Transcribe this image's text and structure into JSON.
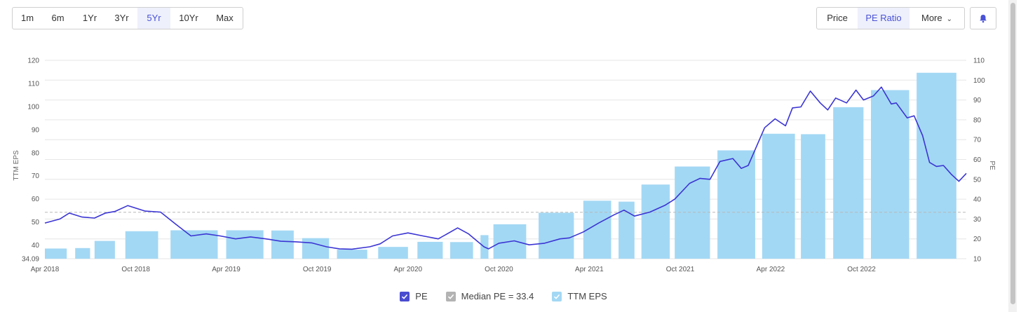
{
  "range_buttons": [
    "1m",
    "6m",
    "1Yr",
    "3Yr",
    "5Yr",
    "10Yr",
    "Max"
  ],
  "active_range": "5Yr",
  "mode_buttons": {
    "price": "Price",
    "pe_ratio": "PE Ratio",
    "more": "More"
  },
  "active_mode": "PE Ratio",
  "colors": {
    "accent": "#4a52d6",
    "pe_line": "#3b35d3",
    "eps_bar": "#a3d8f4",
    "median": "#b8b8b8",
    "grid": "#e6e6e6"
  },
  "legend": {
    "pe": "PE",
    "median": "Median PE = 33.4",
    "eps": "TTM EPS"
  },
  "chart_data": {
    "type": "bar+line",
    "left_axis": {
      "label": "TTM EPS",
      "ticks": [
        "34.09",
        "40",
        "50",
        "60",
        "70",
        "80",
        "90",
        "100",
        "110",
        "120"
      ],
      "range": [
        34.09,
        120
      ]
    },
    "right_axis": {
      "label": "PE",
      "ticks": [
        "10",
        "20",
        "30",
        "40",
        "50",
        "60",
        "70",
        "80",
        "90",
        "100",
        "110"
      ],
      "range": [
        10,
        110
      ]
    },
    "x_ticks": [
      "Apr 2018",
      "Oct 2018",
      "Apr 2019",
      "Oct 2019",
      "Apr 2020",
      "Oct 2020",
      "Apr 2021",
      "Oct 2021",
      "Apr 2022",
      "Oct 2022"
    ],
    "x_range": [
      "2018-04-01",
      "2023-04-30"
    ],
    "median_pe": 33.4,
    "eps_bars": [
      {
        "start": "2018-04-01",
        "end": "2018-05-15",
        "eps": 38.5
      },
      {
        "start": "2018-06-01",
        "end": "2018-07-01",
        "eps": 38.7
      },
      {
        "start": "2018-07-10",
        "end": "2018-08-20",
        "eps": 41.8
      },
      {
        "start": "2018-09-10",
        "end": "2018-11-15",
        "eps": 46.0
      },
      {
        "start": "2018-12-10",
        "end": "2019-03-15",
        "eps": 46.4
      },
      {
        "start": "2019-04-01",
        "end": "2019-06-15",
        "eps": 46.4
      },
      {
        "start": "2019-07-01",
        "end": "2019-08-15",
        "eps": 46.3
      },
      {
        "start": "2019-09-01",
        "end": "2019-10-25",
        "eps": 43.0
      },
      {
        "start": "2019-11-10",
        "end": "2020-01-10",
        "eps": 38.0
      },
      {
        "start": "2020-02-01",
        "end": "2020-04-01",
        "eps": 39.2
      },
      {
        "start": "2020-04-20",
        "end": "2020-06-10",
        "eps": 41.4
      },
      {
        "start": "2020-06-25",
        "end": "2020-08-10",
        "eps": 41.3
      },
      {
        "start": "2020-08-25",
        "end": "2020-09-10",
        "eps": 44.3
      },
      {
        "start": "2020-09-20",
        "end": "2020-11-25",
        "eps": 49.0
      },
      {
        "start": "2020-12-20",
        "end": "2021-03-01",
        "eps": 54.0
      },
      {
        "start": "2021-03-20",
        "end": "2021-05-15",
        "eps": 59.2
      },
      {
        "start": "2021-05-30",
        "end": "2021-07-01",
        "eps": 58.8
      },
      {
        "start": "2021-07-15",
        "end": "2021-09-10",
        "eps": 66.2
      },
      {
        "start": "2021-09-20",
        "end": "2021-11-30",
        "eps": 74.0
      },
      {
        "start": "2021-12-15",
        "end": "2022-03-01",
        "eps": 81.0
      },
      {
        "start": "2022-03-15",
        "end": "2022-05-20",
        "eps": 88.2
      },
      {
        "start": "2022-06-01",
        "end": "2022-07-20",
        "eps": 88.0
      },
      {
        "start": "2022-08-05",
        "end": "2022-10-05",
        "eps": 99.7
      },
      {
        "start": "2022-10-20",
        "end": "2023-01-05",
        "eps": 107.1
      },
      {
        "start": "2023-01-20",
        "end": "2023-04-10",
        "eps": 114.6
      }
    ],
    "pe_series": [
      [
        "2018-04-01",
        28.0
      ],
      [
        "2018-05-01",
        30.0
      ],
      [
        "2018-05-20",
        33.0
      ],
      [
        "2018-06-15",
        31.0
      ],
      [
        "2018-07-10",
        30.5
      ],
      [
        "2018-08-01",
        33.0
      ],
      [
        "2018-08-20",
        33.8
      ],
      [
        "2018-09-15",
        36.8
      ],
      [
        "2018-10-20",
        34.0
      ],
      [
        "2018-11-20",
        33.5
      ],
      [
        "2018-12-20",
        27.5
      ],
      [
        "2019-01-20",
        21.5
      ],
      [
        "2019-02-20",
        22.5
      ],
      [
        "2019-03-20",
        21.5
      ],
      [
        "2019-04-20",
        20.0
      ],
      [
        "2019-05-20",
        21.0
      ],
      [
        "2019-06-20",
        20.0
      ],
      [
        "2019-07-20",
        18.8
      ],
      [
        "2019-08-20",
        18.5
      ],
      [
        "2019-09-20",
        18.0
      ],
      [
        "2019-10-20",
        16.0
      ],
      [
        "2019-11-15",
        15.0
      ],
      [
        "2019-12-10",
        14.8
      ],
      [
        "2020-01-15",
        16.0
      ],
      [
        "2020-02-05",
        17.5
      ],
      [
        "2020-03-01",
        21.5
      ],
      [
        "2020-04-01",
        23.0
      ],
      [
        "2020-05-01",
        21.5
      ],
      [
        "2020-06-01",
        20.0
      ],
      [
        "2020-07-10",
        25.5
      ],
      [
        "2020-08-01",
        22.5
      ],
      [
        "2020-09-01",
        16.0
      ],
      [
        "2020-09-10",
        15.0
      ],
      [
        "2020-10-01",
        17.8
      ],
      [
        "2020-11-01",
        19.0
      ],
      [
        "2020-12-01",
        17.0
      ],
      [
        "2021-01-01",
        17.8
      ],
      [
        "2021-02-01",
        20.0
      ],
      [
        "2021-02-20",
        20.5
      ],
      [
        "2021-03-20",
        23.5
      ],
      [
        "2021-04-20",
        28.0
      ],
      [
        "2021-05-20",
        32.0
      ],
      [
        "2021-06-10",
        34.5
      ],
      [
        "2021-07-01",
        31.5
      ],
      [
        "2021-08-01",
        33.5
      ],
      [
        "2021-09-01",
        37.0
      ],
      [
        "2021-09-20",
        40.0
      ],
      [
        "2021-10-20",
        48.0
      ],
      [
        "2021-11-10",
        50.5
      ],
      [
        "2021-11-30",
        50.0
      ],
      [
        "2021-12-20",
        59.0
      ],
      [
        "2022-01-15",
        60.5
      ],
      [
        "2022-02-01",
        55.5
      ],
      [
        "2022-02-15",
        57.0
      ],
      [
        "2022-03-01",
        65.0
      ],
      [
        "2022-03-20",
        76.0
      ],
      [
        "2022-04-10",
        80.5
      ],
      [
        "2022-05-01",
        77.0
      ],
      [
        "2022-05-15",
        86.0
      ],
      [
        "2022-06-01",
        86.5
      ],
      [
        "2022-06-20",
        94.5
      ],
      [
        "2022-07-10",
        88.5
      ],
      [
        "2022-07-25",
        85.0
      ],
      [
        "2022-08-10",
        91.0
      ],
      [
        "2022-09-01",
        88.5
      ],
      [
        "2022-09-20",
        95.0
      ],
      [
        "2022-10-05",
        90.0
      ],
      [
        "2022-10-25",
        92.0
      ],
      [
        "2022-11-10",
        96.5
      ],
      [
        "2022-11-30",
        88.0
      ],
      [
        "2022-12-10",
        88.5
      ],
      [
        "2023-01-01",
        81.0
      ],
      [
        "2023-01-15",
        82.0
      ],
      [
        "2023-02-01",
        72.0
      ],
      [
        "2023-02-15",
        58.5
      ],
      [
        "2023-03-01",
        56.5
      ],
      [
        "2023-03-15",
        57.0
      ],
      [
        "2023-03-31",
        52.5
      ],
      [
        "2023-04-15",
        49.0
      ],
      [
        "2023-04-30",
        53.0
      ]
    ]
  }
}
